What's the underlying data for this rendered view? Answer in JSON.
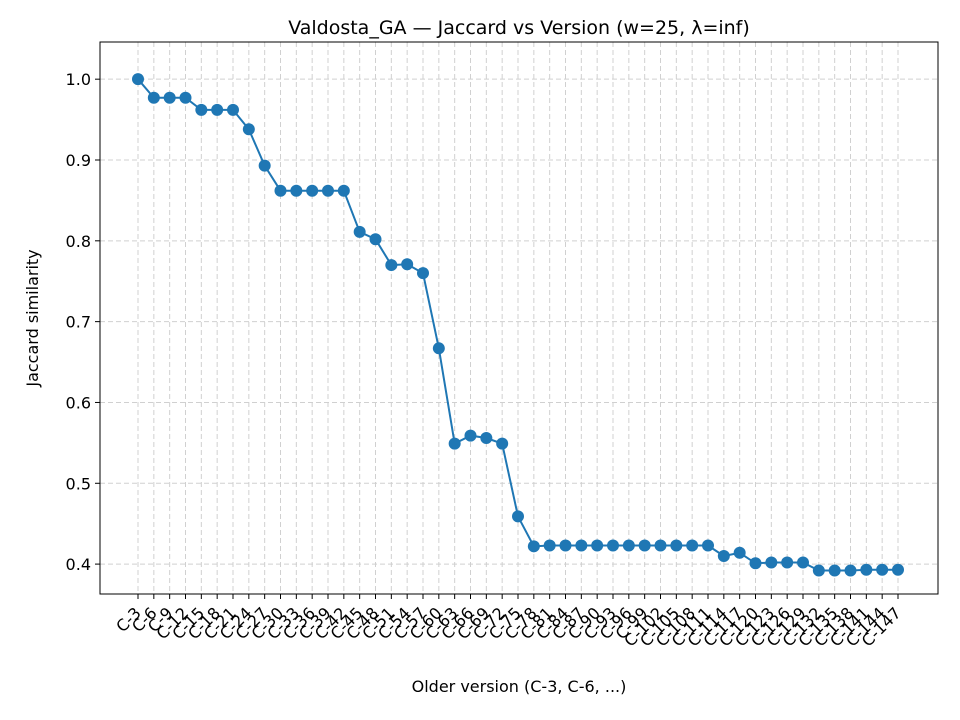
{
  "chart_data": {
    "type": "line",
    "title": "Valdosta_GA — Jaccard vs Version (w=25, λ=inf)",
    "x_label": "Older version (C-3, C-6, ...)",
    "y_label": "Jaccard similarity",
    "categories": [
      "C-3",
      "C-6",
      "C-9",
      "C-12",
      "C-15",
      "C-18",
      "C-21",
      "C-24",
      "C-27",
      "C-30",
      "C-33",
      "C-36",
      "C-39",
      "C-42",
      "C-45",
      "C-48",
      "C-51",
      "C-54",
      "C-57",
      "C-60",
      "C-63",
      "C-66",
      "C-69",
      "C-72",
      "C-75",
      "C-78",
      "C-81",
      "C-84",
      "C-87",
      "C-90",
      "C-93",
      "C-96",
      "C-99",
      "C-102",
      "C-105",
      "C-108",
      "C-111",
      "C-114",
      "C-117",
      "C-120",
      "C-123",
      "C-126",
      "C-129",
      "C-132",
      "C-135",
      "C-138",
      "C-141",
      "C-144",
      "C-147"
    ],
    "series": [
      {
        "name": "Jaccard similarity",
        "color": "#1f77b4",
        "values": [
          1.0,
          0.977,
          0.977,
          0.977,
          0.962,
          0.962,
          0.962,
          0.938,
          0.893,
          0.862,
          0.862,
          0.862,
          0.862,
          0.862,
          0.811,
          0.802,
          0.77,
          0.771,
          0.76,
          0.667,
          0.549,
          0.559,
          0.556,
          0.549,
          0.459,
          0.422,
          0.423,
          0.423,
          0.423,
          0.423,
          0.423,
          0.423,
          0.423,
          0.423,
          0.423,
          0.423,
          0.423,
          0.41,
          0.414,
          0.401,
          0.402,
          0.402,
          0.402,
          0.392,
          0.392,
          0.392,
          0.393,
          0.393,
          0.393
        ]
      }
    ],
    "ylim": [
      0.363,
      1.046
    ],
    "yticks": [
      0.4,
      0.5,
      0.6,
      0.7,
      0.8,
      0.9,
      {
        "value": 1,
        "label": "1.0"
      }
    ],
    "grid": true
  }
}
